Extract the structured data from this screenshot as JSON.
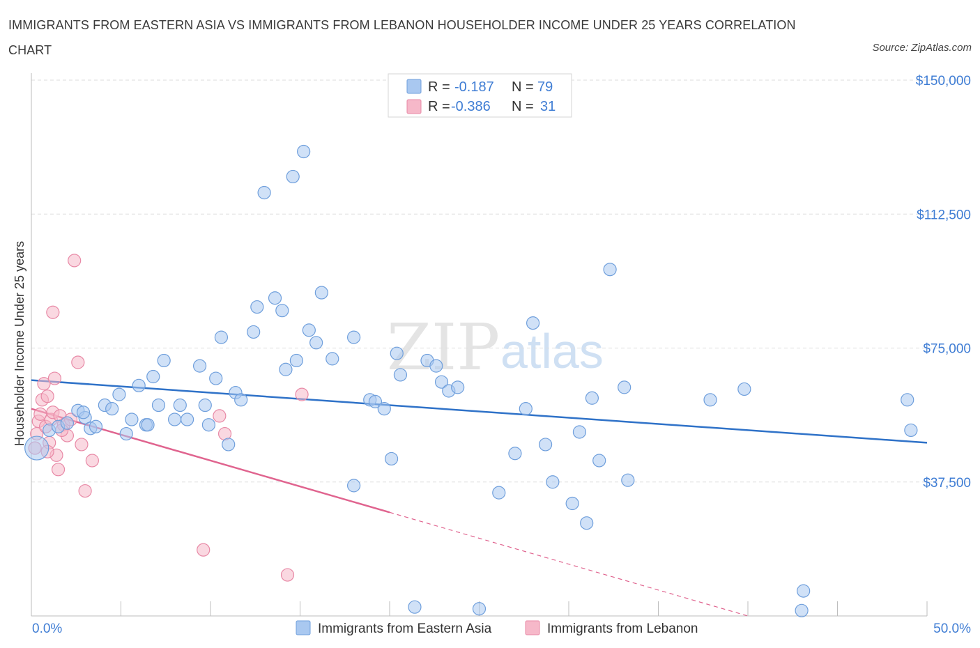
{
  "title": "IMMIGRANTS FROM EASTERN ASIA VS IMMIGRANTS FROM LEBANON HOUSEHOLDER INCOME UNDER 25 YEARS CORRELATION CHART",
  "source": "Source: ZipAtlas.com",
  "watermark": {
    "zip": "ZIP",
    "atlas": "atlas"
  },
  "legend_top": [
    {
      "r_label": "R =",
      "r_value": "-0.187",
      "n_label": "N =",
      "n_value": "79"
    },
    {
      "r_label": "R =",
      "r_value": "-0.386",
      "n_label": "N =",
      "n_value": "31"
    }
  ],
  "colors": {
    "blue_fill": "#a9c8f0",
    "blue_stroke": "#6f9fdc",
    "blue_line": "#2f72c8",
    "pink_fill": "#f6b8c9",
    "pink_stroke": "#e889a6",
    "pink_line": "#e0648f",
    "tick_text": "#3f7dd4",
    "grid": "#dddddd"
  },
  "chart_data": {
    "type": "scatter",
    "xlabel": "",
    "ylabel": "Householder Income Under 25 years",
    "xlim": [
      0,
      50
    ],
    "ylim": [
      0,
      150000
    ],
    "x_tick_labels": [
      "0.0%",
      "50.0%"
    ],
    "y_ticks": [
      37500,
      75000,
      112500,
      150000
    ],
    "y_tick_labels": [
      "$37,500",
      "$75,000",
      "$112,500",
      "$150,000"
    ],
    "grid": "horizontal dashed",
    "legend": "top-center and bottom-center",
    "series": [
      {
        "name": "Immigrants from Eastern Asia",
        "color": "#a9c8f0",
        "r": -0.187,
        "n": 79,
        "trend": {
          "x": [
            0,
            50
          ],
          "y": [
            66000,
            48500
          ],
          "style": "solid"
        },
        "points": [
          [
            0.3,
            47000
          ],
          [
            1.0,
            52000
          ],
          [
            1.5,
            53000
          ],
          [
            2.0,
            54000
          ],
          [
            2.6,
            57500
          ],
          [
            3.0,
            55500
          ],
          [
            3.3,
            52500
          ],
          [
            3.6,
            53000
          ],
          [
            4.1,
            59000
          ],
          [
            4.5,
            58000
          ],
          [
            4.9,
            62000
          ],
          [
            5.3,
            51000
          ],
          [
            5.6,
            55000
          ],
          [
            6.0,
            64500
          ],
          [
            6.4,
            53500
          ],
          [
            6.8,
            67000
          ],
          [
            7.1,
            59000
          ],
          [
            7.4,
            71500
          ],
          [
            8.0,
            55000
          ],
          [
            8.3,
            59000
          ],
          [
            8.7,
            55000
          ],
          [
            9.4,
            70000
          ],
          [
            9.7,
            59000
          ],
          [
            9.9,
            53500
          ],
          [
            10.3,
            66500
          ],
          [
            10.6,
            78000
          ],
          [
            11.0,
            48000
          ],
          [
            11.4,
            62500
          ],
          [
            11.7,
            60500
          ],
          [
            12.4,
            79500
          ],
          [
            12.6,
            86500
          ],
          [
            13.0,
            118500
          ],
          [
            13.6,
            89000
          ],
          [
            14.0,
            85500
          ],
          [
            14.2,
            69000
          ],
          [
            14.6,
            123000
          ],
          [
            14.8,
            71500
          ],
          [
            15.2,
            130000
          ],
          [
            15.5,
            80000
          ],
          [
            15.9,
            76500
          ],
          [
            16.2,
            90500
          ],
          [
            16.8,
            72000
          ],
          [
            18.0,
            78000
          ],
          [
            18.9,
            60500
          ],
          [
            19.2,
            60000
          ],
          [
            19.7,
            58000
          ],
          [
            20.1,
            44000
          ],
          [
            20.4,
            73500
          ],
          [
            20.6,
            67500
          ],
          [
            21.4,
            2500
          ],
          [
            22.1,
            71500
          ],
          [
            22.6,
            70000
          ],
          [
            22.9,
            65500
          ],
          [
            23.3,
            63000
          ],
          [
            23.8,
            64000
          ],
          [
            26.1,
            34500
          ],
          [
            27.0,
            45500
          ],
          [
            27.6,
            58000
          ],
          [
            28.0,
            82000
          ],
          [
            28.7,
            48000
          ],
          [
            29.1,
            37500
          ],
          [
            30.2,
            31500
          ],
          [
            30.6,
            51500
          ],
          [
            31.0,
            26000
          ],
          [
            31.3,
            61000
          ],
          [
            31.7,
            43500
          ],
          [
            18.0,
            36500
          ],
          [
            25.0,
            2000
          ],
          [
            32.3,
            97000
          ],
          [
            33.1,
            64000
          ],
          [
            33.3,
            38000
          ],
          [
            37.9,
            60500
          ],
          [
            39.8,
            63500
          ],
          [
            43.1,
            7000
          ],
          [
            43.0,
            1500
          ],
          [
            48.9,
            60500
          ],
          [
            49.1,
            52000
          ],
          [
            2.9,
            57000
          ],
          [
            6.5,
            53500
          ]
        ]
      },
      {
        "name": "Immigrants from Lebanon",
        "color": "#f6b8c9",
        "r": -0.386,
        "n": 31,
        "trend": {
          "x": [
            0,
            20
          ],
          "y": [
            58000,
            29000
          ],
          "style": "solid",
          "dashed_to": [
            40,
            0
          ]
        },
        "points": [
          [
            0.2,
            47000
          ],
          [
            0.3,
            51000
          ],
          [
            0.4,
            54500
          ],
          [
            0.5,
            56500
          ],
          [
            0.6,
            60500
          ],
          [
            0.7,
            65000
          ],
          [
            0.8,
            53000
          ],
          [
            0.9,
            61500
          ],
          [
            1.0,
            48500
          ],
          [
            1.1,
            55000
          ],
          [
            1.2,
            57000
          ],
          [
            1.3,
            66500
          ],
          [
            1.4,
            45000
          ],
          [
            1.5,
            41000
          ],
          [
            1.6,
            56000
          ],
          [
            1.8,
            53500
          ],
          [
            2.0,
            50500
          ],
          [
            2.2,
            55000
          ],
          [
            2.4,
            99500
          ],
          [
            2.6,
            71000
          ],
          [
            2.8,
            48000
          ],
          [
            3.0,
            35000
          ],
          [
            3.4,
            43500
          ],
          [
            1.2,
            85000
          ],
          [
            9.6,
            18500
          ],
          [
            10.5,
            56000
          ],
          [
            10.8,
            51000
          ],
          [
            14.3,
            11500
          ],
          [
            15.1,
            62000
          ],
          [
            0.9,
            46000
          ],
          [
            1.7,
            52000
          ]
        ]
      }
    ]
  }
}
